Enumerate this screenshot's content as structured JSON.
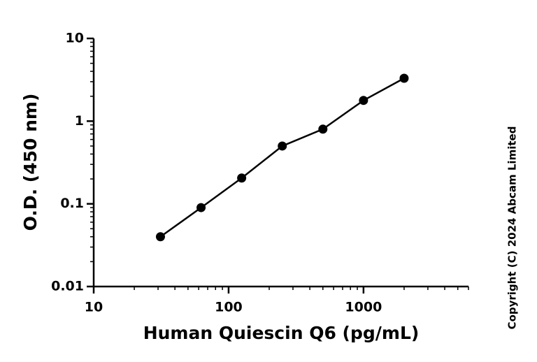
{
  "chart_data": {
    "type": "scatter",
    "x_label": "Human Quiescin Q6 (pg/mL)",
    "y_label": "O.D. (450 nm)",
    "annotation": "Copyright (C) 2024 Abcam Limited",
    "x": [
      31.25,
      62.5,
      125,
      250,
      500,
      1000,
      2000
    ],
    "values": [
      0.04,
      0.09,
      0.205,
      0.5,
      0.8,
      1.78,
      3.3
    ],
    "color": "#000000",
    "connect": true,
    "xscale": "log",
    "yscale": "log",
    "xlim": [
      10,
      6000
    ],
    "ylim": [
      0.01,
      10
    ],
    "xticks": [
      10,
      100,
      1000
    ],
    "yticks": [
      0.01,
      0.1,
      1,
      10
    ]
  }
}
